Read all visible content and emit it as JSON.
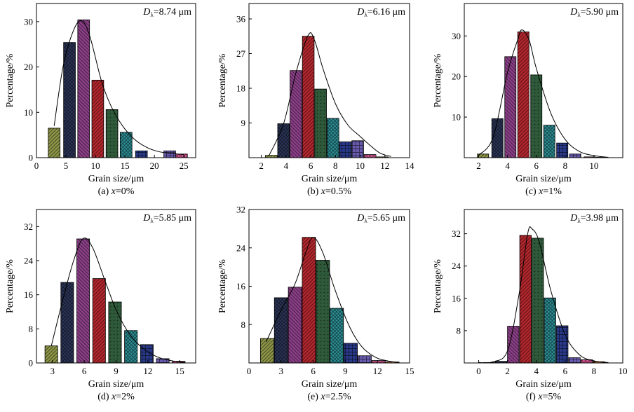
{
  "chart_data": [
    {
      "id": "a",
      "type": "bar",
      "caption_prefix": "(a) ",
      "caption_var": "x",
      "caption_suffix": "=0%",
      "annotation_sym": "D",
      "annotation_sub": "λ",
      "annotation_value": "=8.74 μm",
      "xlabel": "Grain size/μm",
      "ylabel": "Percentage/%",
      "xlim": [
        0,
        27
      ],
      "ylim": [
        0,
        34
      ],
      "xticks": [
        0,
        5,
        10,
        15,
        20,
        25
      ],
      "yticks": [
        0,
        10,
        20,
        30
      ],
      "bar_width": 2.0,
      "x": [
        3,
        5.6,
        8,
        10.4,
        12.8,
        15.2,
        17.8,
        22.6,
        24.6
      ],
      "values": [
        6.5,
        25.4,
        30.4,
        17.1,
        10.6,
        5.6,
        1.5,
        1.5,
        0.8
      ],
      "fit_curve": [
        [
          3,
          7
        ],
        [
          4.5,
          20
        ],
        [
          6.2,
          27.8
        ],
        [
          7.6,
          30.2
        ],
        [
          9,
          27
        ],
        [
          11,
          17
        ],
        [
          12.6,
          11.5
        ],
        [
          14.5,
          7.2
        ],
        [
          16.5,
          4.2
        ],
        [
          18.5,
          2.4
        ],
        [
          20.5,
          1.4
        ],
        [
          23,
          0.9
        ],
        [
          25,
          0.7
        ]
      ],
      "hatch": [
        "diag",
        "cross",
        "diag2",
        "diag",
        "dots",
        "cross",
        "grid",
        "grid",
        "cross"
      ]
    },
    {
      "id": "b",
      "type": "bar",
      "caption_prefix": "(b) ",
      "caption_var": "x",
      "caption_suffix": "=0.5%",
      "annotation_sym": "D",
      "annotation_sub": "λ",
      "annotation_value": "=6.16 μm",
      "xlabel": "Grain size/μm",
      "ylabel": "Percentage/%",
      "xlim": [
        1,
        14
      ],
      "ylim": [
        0,
        40
      ],
      "xticks": [
        2,
        4,
        6,
        8,
        10,
        12,
        14
      ],
      "yticks": [
        9,
        18,
        27,
        36
      ],
      "bar_width": 0.95,
      "x": [
        2.8,
        3.8,
        4.8,
        5.8,
        6.8,
        7.8,
        8.8,
        9.8,
        10.8,
        11.8
      ],
      "values": [
        0.6,
        8.8,
        22.6,
        31.5,
        17.8,
        10.2,
        4.1,
        4.4,
        0.8,
        0.2
      ],
      "fit_curve": [
        [
          2.6,
          0.4
        ],
        [
          3.8,
          8.8
        ],
        [
          4.8,
          22
        ],
        [
          5.8,
          31.8
        ],
        [
          6.3,
          30.5
        ],
        [
          7,
          23
        ],
        [
          8,
          14
        ],
        [
          9,
          8.5
        ],
        [
          10,
          5.5
        ],
        [
          10.8,
          3.2
        ],
        [
          11.6,
          1.2
        ],
        [
          12.5,
          0.3
        ]
      ],
      "hatch": [
        "diag",
        "cross",
        "diag2",
        "diag",
        "dots",
        "cross",
        "grid",
        "grid",
        "cross",
        "diag"
      ]
    },
    {
      "id": "c",
      "type": "bar",
      "caption_prefix": "(c) ",
      "caption_var": "x",
      "caption_suffix": "=1%",
      "annotation_sym": "D",
      "annotation_sub": "λ",
      "annotation_value": "=5.90 μm",
      "xlabel": "Grain size/μm",
      "ylabel": "Percentage/%",
      "xlim": [
        1,
        12
      ],
      "ylim": [
        0,
        38
      ],
      "xticks": [
        2,
        4,
        6,
        8,
        10
      ],
      "yticks": [
        10,
        20,
        30
      ],
      "bar_width": 0.78,
      "x": [
        2.3,
        3.3,
        4.2,
        5.1,
        6.0,
        6.9,
        7.8,
        8.7,
        9.7,
        10.5
      ],
      "values": [
        0.9,
        9.6,
        24.9,
        31.0,
        20.4,
        8.0,
        3.6,
        0.9,
        0.2,
        0.1
      ],
      "fit_curve": [
        [
          2,
          0.6
        ],
        [
          3,
          5
        ],
        [
          4,
          21
        ],
        [
          4.7,
          29
        ],
        [
          5,
          31.5
        ],
        [
          5.5,
          29
        ],
        [
          6,
          22
        ],
        [
          7,
          11
        ],
        [
          8,
          4.5
        ],
        [
          9,
          1.5
        ],
        [
          10,
          0.5
        ],
        [
          11,
          0.1
        ]
      ],
      "hatch": [
        "diag",
        "cross",
        "diag2",
        "diag",
        "dots",
        "cross",
        "grid",
        "grid",
        "cross",
        "diag"
      ]
    },
    {
      "id": "d",
      "type": "bar",
      "caption_prefix": "(d) ",
      "caption_var": "x",
      "caption_suffix": "=2%",
      "annotation_sym": "D",
      "annotation_sub": "λ",
      "annotation_value": "=5.85 μm",
      "xlabel": "Grain size/μm",
      "ylabel": "Percentage/%",
      "xlim": [
        1.5,
        16.5
      ],
      "ylim": [
        0,
        36
      ],
      "xticks": [
        3,
        6,
        9,
        12,
        15
      ],
      "yticks": [
        0,
        8,
        16,
        24,
        32
      ],
      "bar_width": 1.2,
      "x": [
        2.9,
        4.4,
        5.9,
        7.4,
        8.9,
        10.4,
        11.9,
        13.4,
        14.9
      ],
      "values": [
        4.0,
        18.9,
        29.1,
        19.8,
        14.3,
        7.6,
        4.3,
        1.0,
        0.4
      ],
      "fit_curve": [
        [
          2.9,
          4
        ],
        [
          4,
          15
        ],
        [
          5,
          24
        ],
        [
          5.9,
          29.2
        ],
        [
          6.8,
          27
        ],
        [
          8,
          19
        ],
        [
          9,
          12.5
        ],
        [
          10.2,
          7
        ],
        [
          11.5,
          3.5
        ],
        [
          13,
          1.3
        ],
        [
          14.5,
          0.4
        ],
        [
          15.5,
          0.1
        ]
      ],
      "hatch": [
        "diag",
        "cross",
        "diag2",
        "diag",
        "dots",
        "cross",
        "grid",
        "grid",
        "cross"
      ]
    },
    {
      "id": "e",
      "type": "bar",
      "caption_prefix": "(e) ",
      "caption_var": "x",
      "caption_suffix": "=2.5%",
      "annotation_sym": "D",
      "annotation_sub": "λ",
      "annotation_value": "=5.65 μm",
      "xlabel": "Grain size/μm",
      "ylabel": "Percentage/%",
      "xlim": [
        0,
        15
      ],
      "ylim": [
        0,
        32
      ],
      "xticks": [
        0,
        3,
        6,
        9,
        12,
        15
      ],
      "yticks": [
        8,
        16,
        24,
        32
      ],
      "bar_width": 1.25,
      "x": [
        1.7,
        3.0,
        4.3,
        5.6,
        6.9,
        8.2,
        9.5,
        10.8,
        12.1,
        13.4
      ],
      "values": [
        5.1,
        13.6,
        15.8,
        26.2,
        21.4,
        11.4,
        4.1,
        1.5,
        0.5,
        0.2
      ],
      "fit_curve": [
        [
          1.6,
          4.4
        ],
        [
          3,
          11
        ],
        [
          4.3,
          16.5
        ],
        [
          5.3,
          23
        ],
        [
          6,
          26.2
        ],
        [
          6.9,
          23
        ],
        [
          8,
          15.5
        ],
        [
          9.3,
          8
        ],
        [
          10.5,
          3.5
        ],
        [
          11.8,
          1.2
        ],
        [
          13,
          0.4
        ],
        [
          14,
          0.1
        ]
      ],
      "hatch": [
        "diag",
        "cross",
        "diag2",
        "diag",
        "dots",
        "cross",
        "grid",
        "grid",
        "cross",
        "diag"
      ]
    },
    {
      "id": "f",
      "type": "bar",
      "caption_prefix": "(f) ",
      "caption_var": "x",
      "caption_suffix": "=5%",
      "annotation_sym": "D",
      "annotation_sub": "λ",
      "annotation_value": "=3.98 μm",
      "xlabel": "Grain size/μm",
      "ylabel": "Percentage/%",
      "xlim": [
        -1,
        10
      ],
      "ylim": [
        0,
        38
      ],
      "xticks": [
        0,
        2,
        4,
        6,
        8,
        10
      ],
      "yticks": [
        8,
        16,
        24,
        32
      ],
      "bar_width": 0.8,
      "x": [
        0.7,
        1.55,
        2.4,
        3.25,
        4.1,
        4.95,
        5.8,
        6.65,
        7.5,
        8.35
      ],
      "values": [
        0.1,
        0.4,
        9.1,
        31.6,
        30.9,
        16.1,
        9.2,
        1.3,
        0.8,
        0.3
      ],
      "fit_curve": [
        [
          0,
          0.1
        ],
        [
          1,
          0.3
        ],
        [
          2,
          3
        ],
        [
          2.8,
          17
        ],
        [
          3.4,
          32
        ],
        [
          3.7,
          33.2
        ],
        [
          4.2,
          30
        ],
        [
          5,
          18
        ],
        [
          6,
          7
        ],
        [
          7,
          2
        ],
        [
          8,
          0.5
        ],
        [
          9,
          0.1
        ]
      ],
      "hatch": [
        "diag",
        "cross",
        "diag2",
        "diag",
        "dots",
        "cross",
        "grid",
        "grid",
        "cross",
        "diag"
      ]
    }
  ],
  "colors": [
    "#8c9547",
    "#2c3659",
    "#8b3f87",
    "#b2272d",
    "#2f5a3a",
    "#2c8f95",
    "#2a3a8a",
    "#6a5bb0",
    "#e05a9a",
    "#ea8a3c"
  ]
}
